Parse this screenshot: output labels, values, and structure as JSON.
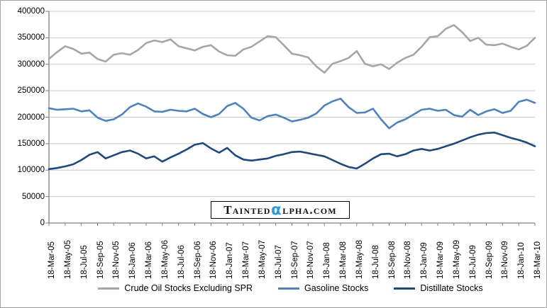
{
  "chart_data": {
    "type": "line",
    "title": "",
    "xlabel": "",
    "ylabel": "",
    "ylim": [
      0,
      400000
    ],
    "y_ticks": [
      0,
      50000,
      100000,
      150000,
      200000,
      250000,
      300000,
      350000,
      400000
    ],
    "grid": "horizontal",
    "legend_position": "bottom",
    "points_per_x_label": 2,
    "x_tick_labels": [
      "18-Mar-05",
      "18-May-05",
      "18-Jul-05",
      "18-Sep-05",
      "18-Nov-05",
      "18-Jan-06",
      "18-Mar-06",
      "18-May-06",
      "18-Jul-06",
      "18-Sep-06",
      "18-Nov-06",
      "18-Jan-07",
      "18-Mar-07",
      "18-May-07",
      "18-Jul-07",
      "18-Sep-07",
      "18-Nov-07",
      "18-Jan-08",
      "18-Mar-08",
      "18-May-08",
      "18-Jul-08",
      "18-Sep-08",
      "18-Nov-08",
      "18-Jan-09",
      "18-Mar-09",
      "18-May-09",
      "18-Jul-09",
      "18-Sep-09",
      "18-Nov-09",
      "18-Jan-10",
      "18-Mar-10"
    ],
    "x_resolution": "monthly samples of weekly data, 18-Mar-05 to 18-Mar-10",
    "values_unit": "thousand barrels",
    "series": [
      {
        "name": "Crude Oil Stocks Excluding SPR",
        "color": "#A6A6A6",
        "values": [
          310000,
          323000,
          334000,
          329000,
          320000,
          322000,
          310000,
          305000,
          318000,
          321000,
          318000,
          327000,
          340000,
          345000,
          342000,
          347000,
          334000,
          330000,
          326000,
          333000,
          336000,
          324000,
          317000,
          316000,
          328000,
          333000,
          343000,
          353000,
          351000,
          336000,
          320000,
          317000,
          313000,
          296000,
          284000,
          301000,
          306000,
          312000,
          325000,
          301000,
          296000,
          300000,
          291000,
          303000,
          312000,
          318000,
          333000,
          351000,
          353000,
          367000,
          374000,
          361000,
          344000,
          350000,
          337000,
          336000,
          339000,
          333000,
          328000,
          335000,
          350000
        ]
      },
      {
        "name": "Gasoline Stocks",
        "color": "#4F81BD",
        "values": [
          217000,
          214000,
          215000,
          216000,
          211000,
          213000,
          199000,
          193000,
          196000,
          205000,
          219000,
          226000,
          220000,
          211000,
          210000,
          214000,
          212000,
          211000,
          216000,
          206000,
          200000,
          206000,
          221000,
          227000,
          216000,
          199000,
          194000,
          202000,
          205000,
          199000,
          192000,
          195000,
          199000,
          207000,
          222000,
          230000,
          235000,
          219000,
          208000,
          209000,
          216000,
          196000,
          179000,
          190000,
          196000,
          205000,
          214000,
          216000,
          212000,
          214000,
          204000,
          201000,
          214000,
          204000,
          211000,
          215000,
          208000,
          212000,
          229000,
          233000,
          227000
        ]
      },
      {
        "name": "Distillate Stocks",
        "color": "#1F497D",
        "values": [
          102000,
          104000,
          107000,
          111000,
          119000,
          129000,
          134000,
          122000,
          128000,
          134000,
          137000,
          131000,
          122000,
          126000,
          116000,
          124000,
          131000,
          139000,
          148000,
          151000,
          141000,
          133000,
          142000,
          128000,
          120000,
          118000,
          120000,
          122000,
          127000,
          130000,
          134000,
          135000,
          132000,
          129000,
          126000,
          119000,
          112000,
          106000,
          103000,
          112000,
          122000,
          130000,
          131000,
          126000,
          130000,
          137000,
          140000,
          137000,
          140000,
          145000,
          150000,
          156000,
          162000,
          167000,
          170000,
          171000,
          166000,
          161000,
          157000,
          152000,
          145000
        ]
      }
    ]
  },
  "watermark": {
    "part1": "Tainted",
    "alpha": "α",
    "part2": "lpha.com",
    "alpha_color": "#2E9BD5"
  },
  "style_colors": {
    "gridline": "#C9C9C9",
    "axis": "#808080"
  }
}
